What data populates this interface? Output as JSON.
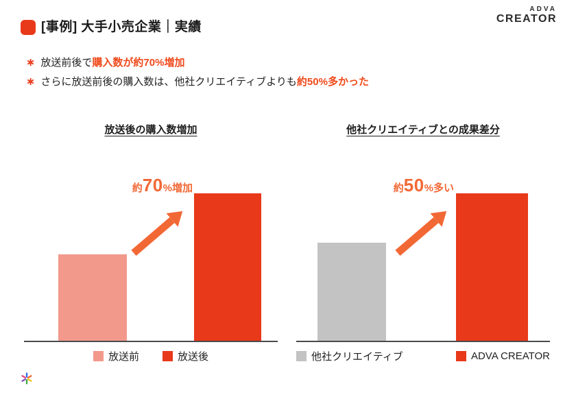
{
  "logo": {
    "line1": "ADVA",
    "line2": "CREATOR"
  },
  "header": {
    "title": "[事例] 大手小売企業｜実績"
  },
  "bullets": [
    {
      "marker": "∗",
      "prefix": "放送前後で",
      "highlight": "購入数が約70%増加",
      "suffix": ""
    },
    {
      "marker": "∗",
      "prefix": "さらに放送前後の購入数は、他社クリエイティブよりも",
      "highlight": "約50%多かった",
      "suffix": ""
    }
  ],
  "colors": {
    "brand_red": "#E8391A",
    "highlight_orange": "#F0491B",
    "annotation_orange": "#F26835",
    "bar_pink": "#F2998C",
    "bar_gray": "#C3C3C3",
    "axis": "#4a4a4a",
    "text": "#222222"
  },
  "chart_data": [
    {
      "type": "bar",
      "title": "放送後の購入数増加",
      "categories": [
        "放送前",
        "放送後"
      ],
      "values": [
        100,
        170
      ],
      "bar_colors": [
        "#F2998C",
        "#E8391A"
      ],
      "annotation": {
        "prefix": "約",
        "value": "70",
        "suffix": "%増加"
      },
      "legend_position": "bottom",
      "grid": false,
      "note": "放送後 is approximately 70% higher than 放送前"
    },
    {
      "type": "bar",
      "title": "他社クリエイティブとの成果差分",
      "categories": [
        "他社クリエイティブ",
        "ADVA CREATOR"
      ],
      "values": [
        100,
        150
      ],
      "bar_colors": [
        "#C3C3C3",
        "#E8391A"
      ],
      "annotation": {
        "prefix": "約",
        "value": "50",
        "suffix": "%多い"
      },
      "legend_position": "bottom",
      "grid": false,
      "note": "ADVA CREATOR is approximately 50% higher than 他社クリエイティブ"
    }
  ]
}
